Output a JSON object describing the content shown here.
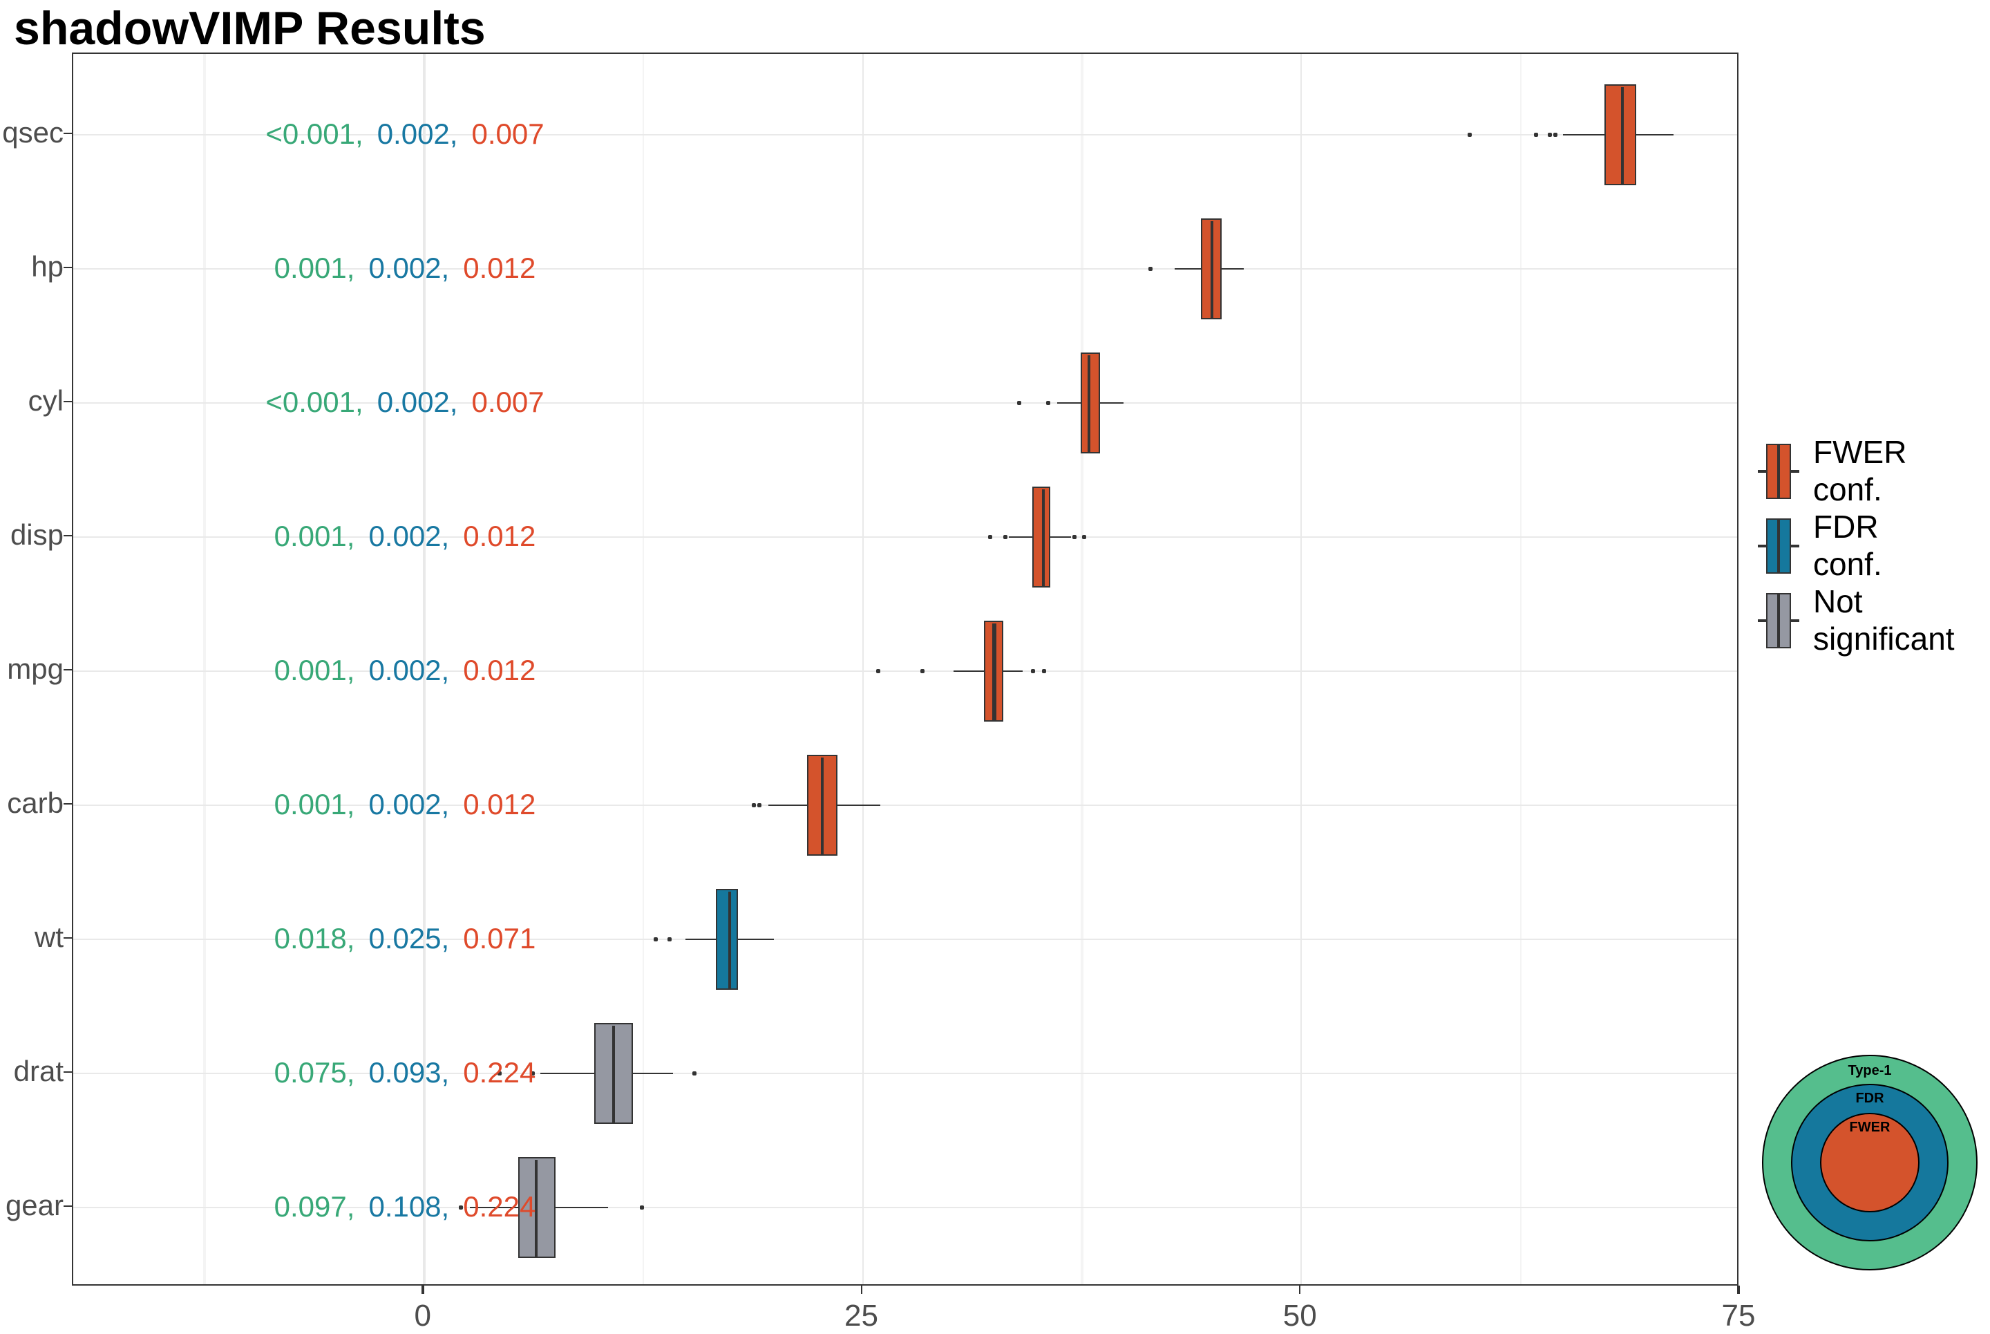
{
  "title": "shadowVIMP Results",
  "colors": {
    "fwer": "#D4532C",
    "fdr": "#15789D",
    "not_significant": "#9598A2",
    "venn_type1": "#55BE8D",
    "p_green": "#38A877",
    "p_blue": "#1878A2",
    "p_red": "#DF4A2B",
    "axis_text": "#4D4D4D",
    "stroke": "#333333",
    "grid_major": "#E9E9E9",
    "grid_minor": "#F4F4F4"
  },
  "chart_data": {
    "type": "boxplot",
    "orientation": "horizontal",
    "title": "shadowVIMP Results",
    "xlabel": "",
    "ylabel": "",
    "xlim": [
      -20,
      75
    ],
    "x_major_ticks": [
      0,
      25,
      50,
      75
    ],
    "x_minor_gridlines": [
      -12.5,
      12.5,
      37.5,
      62.5
    ],
    "grid": "on",
    "legend_position": "right",
    "categories": [
      "qsec",
      "hp",
      "cyl",
      "disp",
      "mpg",
      "carb",
      "wt",
      "drat",
      "gear"
    ],
    "p_value_colors": [
      "p_green",
      "p_blue",
      "p_red"
    ],
    "rows": [
      {
        "variable": "qsec",
        "group": "fwer",
        "p_values": [
          "<0.001",
          "0.002",
          "0.007"
        ],
        "whisker_low": 64.9,
        "q1": 67.3,
        "median": 68.3,
        "q3": 69.1,
        "whisker_high": 71.2,
        "outliers": [
          59.6,
          63.4,
          64.2,
          64.5
        ]
      },
      {
        "variable": "hp",
        "group": "fwer",
        "p_values": [
          "0.001",
          "0.002",
          "0.012"
        ],
        "whisker_low": 42.8,
        "q1": 44.3,
        "median": 44.9,
        "q3": 45.5,
        "whisker_high": 46.7,
        "outliers": [
          41.4
        ]
      },
      {
        "variable": "cyl",
        "group": "fwer",
        "p_values": [
          "<0.001",
          "0.002",
          "0.007"
        ],
        "whisker_low": 36.1,
        "q1": 37.4,
        "median": 37.9,
        "q3": 38.5,
        "whisker_high": 39.9,
        "outliers": [
          33.9,
          35.6
        ]
      },
      {
        "variable": "disp",
        "group": "fwer",
        "p_values": [
          "0.001",
          "0.002",
          "0.012"
        ],
        "whisker_low": 33.3,
        "q1": 34.7,
        "median": 35.3,
        "q3": 35.7,
        "whisker_high": 36.9,
        "outliers": [
          32.3,
          33.1,
          37.1,
          37.6
        ]
      },
      {
        "variable": "mpg",
        "group": "fwer",
        "p_values": [
          "0.001",
          "0.002",
          "0.012"
        ],
        "whisker_low": 30.2,
        "q1": 31.9,
        "median": 32.5,
        "q3": 33.0,
        "whisker_high": 34.1,
        "outliers": [
          25.9,
          28.4,
          34.7,
          35.3
        ]
      },
      {
        "variable": "carb",
        "group": "fwer",
        "p_values": [
          "0.001",
          "0.002",
          "0.012"
        ],
        "whisker_low": 19.6,
        "q1": 21.8,
        "median": 22.7,
        "q3": 23.6,
        "whisker_high": 26.0,
        "outliers": [
          18.8,
          19.1
        ]
      },
      {
        "variable": "wt",
        "group": "fdr",
        "p_values": [
          "0.018",
          "0.025",
          "0.071"
        ],
        "whisker_low": 14.9,
        "q1": 16.6,
        "median": 17.4,
        "q3": 17.9,
        "whisker_high": 19.9,
        "outliers": [
          13.2,
          14.0
        ]
      },
      {
        "variable": "drat",
        "group": "not_significant",
        "p_values": [
          "0.075",
          "0.093",
          "0.224"
        ],
        "whisker_low": 6.6,
        "q1": 9.7,
        "median": 10.8,
        "q3": 11.9,
        "whisker_high": 14.2,
        "outliers": [
          4.3,
          6.2,
          15.4
        ]
      },
      {
        "variable": "gear",
        "group": "not_significant",
        "p_values": [
          "0.097",
          "0.108",
          "0.224"
        ],
        "whisker_low": 2.6,
        "q1": 5.4,
        "median": 6.4,
        "q3": 7.5,
        "whisker_high": 10.5,
        "outliers": [
          2.1,
          12.4
        ]
      }
    ]
  },
  "legend": {
    "items": [
      {
        "line1": "FWER",
        "line2": "conf.",
        "group": "fwer"
      },
      {
        "line1": "FDR",
        "line2": "conf.",
        "group": "fdr"
      },
      {
        "line1": "Not",
        "line2": "significant",
        "group": "not_significant"
      }
    ]
  },
  "venn": {
    "rings": [
      {
        "label": "Type-1",
        "group": "venn_type1"
      },
      {
        "label": "FDR",
        "group": "fdr"
      },
      {
        "label": "FWER",
        "group": "fwer"
      }
    ]
  }
}
